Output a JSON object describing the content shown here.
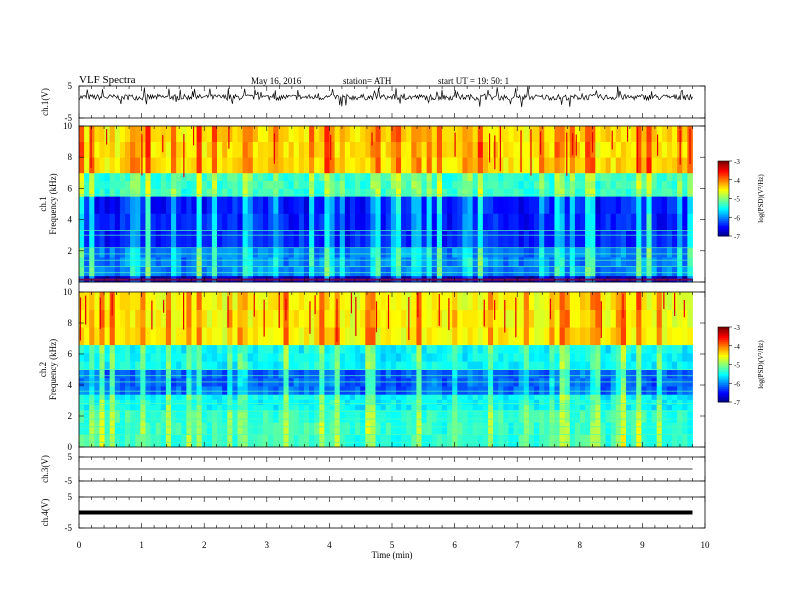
{
  "header": {
    "title": "VLF  Spectra",
    "date": "May 16, 2016",
    "station": "station= ATH",
    "start": "start  UT  =    19: 50: 1"
  },
  "chart_data": [
    {
      "type": "line",
      "panel": "ch1-waveform",
      "ylabel": "ch.1(V)",
      "ylim": [
        -5,
        5
      ],
      "yticks": [
        5,
        -5
      ],
      "x_range_min": [
        0,
        9.8
      ],
      "baseline_v": 1.5,
      "noise_amplitude_v": 0.9,
      "spikes": "frequent positive/negative spikes up to about +3.5 V / -1.5 V"
    },
    {
      "type": "heatmap",
      "panel": "ch1-spectrogram",
      "ylabel": "ch.1\nFrequency  (kHz)",
      "ylim": [
        0,
        10
      ],
      "yticks": [
        0,
        2,
        4,
        6,
        8,
        10
      ],
      "colorbar_label": "log(PSD)(V²/Hz)",
      "colorbar_range": [
        -7,
        -3
      ],
      "colorbar_ticks": [
        -3,
        -4,
        -5,
        -6,
        -7
      ],
      "bands_khz": [
        {
          "from": 0,
          "to": 0.4,
          "level": -6.8
        },
        {
          "from": 0.4,
          "to": 2.2,
          "level": -6.0
        },
        {
          "from": 2.2,
          "to": 5.5,
          "level": -6.4
        },
        {
          "from": 5.5,
          "to": 7.0,
          "level": -5.3
        },
        {
          "from": 7.0,
          "to": 10,
          "level": -4.4
        }
      ],
      "tonal_lines_khz": [
        0.15,
        0.6,
        1.0,
        1.4,
        1.8,
        2.2,
        3.0,
        3.3,
        5.6
      ]
    },
    {
      "type": "heatmap",
      "panel": "ch2-spectrogram",
      "ylabel": "ch.2\nFrequency  (kHz)",
      "ylim": [
        0,
        10
      ],
      "yticks": [
        0,
        2,
        4,
        6,
        8,
        10
      ],
      "colorbar_label": "log(PSD)(V²/Hz)",
      "colorbar_range": [
        -7,
        -3
      ],
      "colorbar_ticks": [
        -3,
        -4,
        -5,
        -6,
        -7
      ],
      "bands_khz": [
        {
          "from": 0,
          "to": 2.4,
          "level": -5.3
        },
        {
          "from": 2.4,
          "to": 3.4,
          "level": -5.5
        },
        {
          "from": 3.4,
          "to": 5.0,
          "level": -6.1
        },
        {
          "from": 5.0,
          "to": 6.6,
          "level": -5.5
        },
        {
          "from": 6.6,
          "to": 10,
          "level": -4.5
        }
      ],
      "tonal_lines_khz": [
        0.3,
        0.8,
        1.3,
        1.8,
        2.3,
        2.8,
        3.6,
        4.2,
        4.6,
        5.0
      ]
    },
    {
      "type": "line",
      "panel": "ch3-waveform",
      "ylabel": "ch.3(V)",
      "ylim": [
        -5,
        5
      ],
      "yticks": [
        5,
        -5
      ],
      "level_v": 0
    },
    {
      "type": "line",
      "panel": "ch4-waveform",
      "ylabel": "ch.4(V)",
      "ylim": [
        -5,
        5
      ],
      "yticks": [
        5,
        -5
      ],
      "level_v": 0,
      "trace": "thick flat"
    }
  ],
  "xaxis": {
    "label": "Time  (min)",
    "ticks": [
      "0",
      "1",
      "2",
      "3",
      "4",
      "5",
      "6",
      "7",
      "8",
      "9",
      "10"
    ],
    "range": [
      0,
      10
    ],
    "data_end": 9.8
  }
}
